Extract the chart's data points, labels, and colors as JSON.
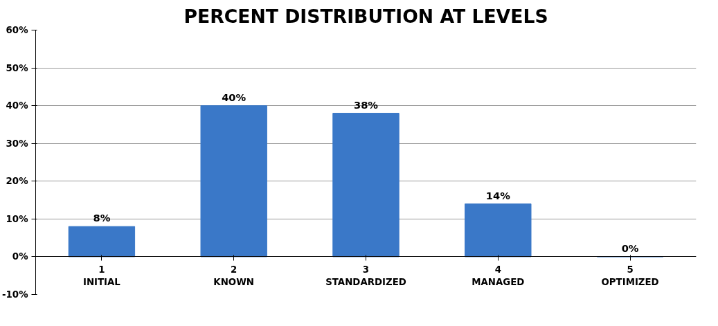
{
  "chart_data": {
    "type": "bar",
    "title": "PERCENT DISTRIBUTION AT LEVELS",
    "categories": [
      "1\nINITIAL",
      "2\nKNOWN",
      "3\nSTANDARDIZED",
      "4\nMANAGED",
      "5\nOPTIMIZED"
    ],
    "values": [
      8,
      40,
      38,
      14,
      0
    ],
    "color": "#3a78c8",
    "value_labels": [
      "8%",
      "40%",
      "38%",
      "14%",
      "0%"
    ],
    "ylim": [
      -10,
      60
    ],
    "yticks": [
      {
        "value": -10,
        "label": "-10%"
      },
      {
        "value": 0,
        "label": "0%"
      },
      {
        "value": 10,
        "label": "10%"
      },
      {
        "value": 20,
        "label": "20%"
      },
      {
        "value": 30,
        "label": "30%"
      },
      {
        "value": 40,
        "label": "40%"
      },
      {
        "value": 50,
        "label": "50%"
      },
      {
        "value": 60,
        "label": "60%"
      }
    ],
    "grid": "y"
  }
}
